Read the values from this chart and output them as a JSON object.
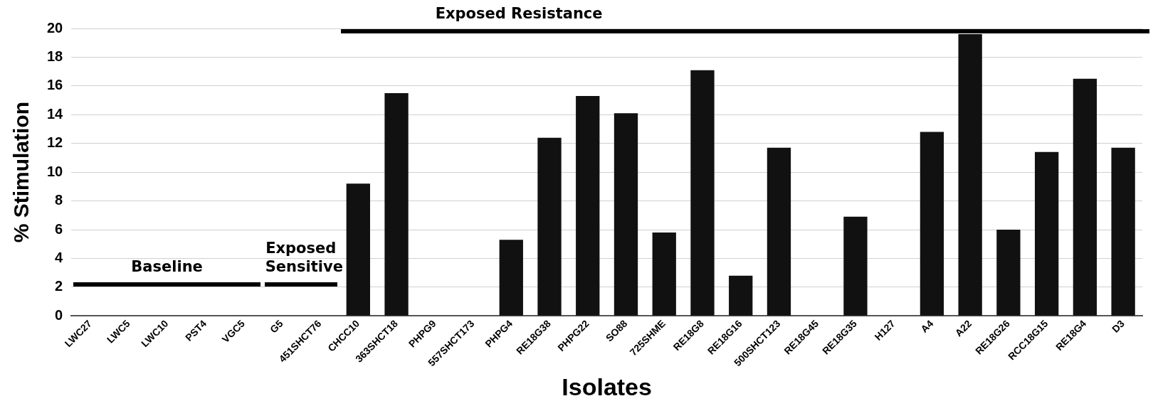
{
  "chart_data": {
    "type": "bar",
    "xlabel": "Isolates",
    "ylabel": "% Stimulation",
    "categories": [
      "LWC27",
      "LWC5",
      "LWC10",
      "PST4",
      "VGC5",
      "G5",
      "451SHCT76",
      "CHCC10",
      "363SHCT18",
      "PHPG9",
      "557SHCT173",
      "PHPG4",
      "RE18G38",
      "PHPG22",
      "SO88",
      "725SHME",
      "RE18G8",
      "RE18G16",
      "500SHCT123",
      "RE18G45",
      "RE18G35",
      "H127",
      "A4",
      "A22",
      "RE18G26",
      "RCC18G15",
      "RE18G4",
      "D3"
    ],
    "values": [
      0,
      0,
      0,
      0,
      0,
      0,
      0,
      9.2,
      15.5,
      0,
      0,
      5.3,
      12.4,
      15.3,
      14.1,
      5.8,
      17.1,
      2.8,
      11.7,
      0,
      6.9,
      0,
      12.8,
      19.6,
      6.0,
      11.4,
      16.5,
      11.7
    ],
    "color": "#111111",
    "ylim": [
      0,
      20
    ],
    "yticks": [
      0,
      2,
      4,
      6,
      8,
      10,
      12,
      14,
      16,
      18,
      20
    ],
    "grid": "y",
    "annotations": [
      "Baseline",
      "Exposed Sensitive",
      "Exposed Resistance"
    ]
  }
}
